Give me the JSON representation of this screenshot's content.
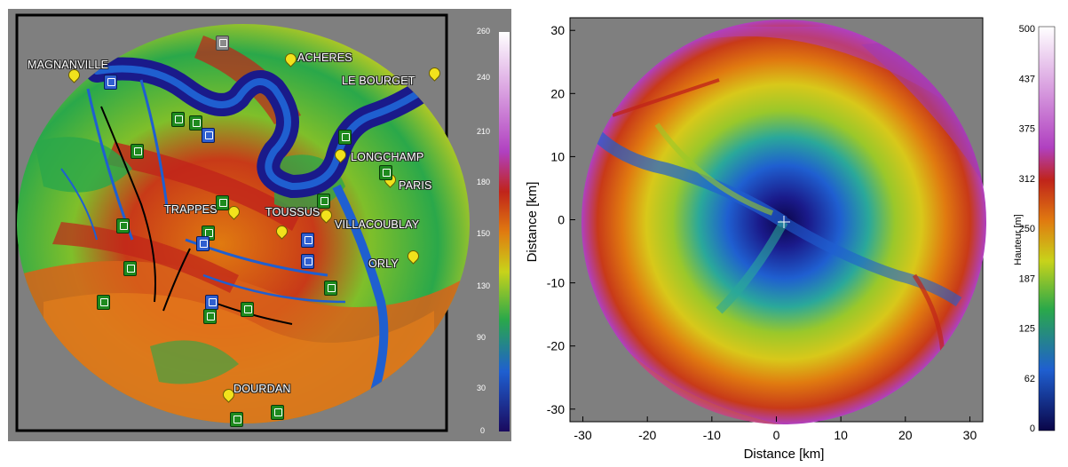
{
  "left_map": {
    "colorbar_ticks": [
      "260",
      "240",
      "210",
      "180",
      "150",
      "130",
      "90",
      "30",
      "0"
    ],
    "places": [
      {
        "id": "magnanville",
        "label": "MAGNANVILLE"
      },
      {
        "id": "acheres",
        "label": "ACHERES"
      },
      {
        "id": "le-bourget",
        "label": "LE BOURGET"
      },
      {
        "id": "longchamp",
        "label": "LONGCHAMP"
      },
      {
        "id": "paris",
        "label": "PARIS"
      },
      {
        "id": "trappes",
        "label": "TRAPPES"
      },
      {
        "id": "toussus",
        "label": "TOUSSUS"
      },
      {
        "id": "villacoublay",
        "label": "VILLACOUBLAY"
      },
      {
        "id": "orly",
        "label": "ORLY"
      },
      {
        "id": "dourdan",
        "label": "DOURDAN"
      }
    ],
    "colors": {
      "low": "#1a0a5e",
      "mid_low": "#1f5fd0",
      "mid": "#2aa84a",
      "mid_high": "#c8d31a",
      "high": "#e07a10",
      "very_high": "#c0241a",
      "peak": "#b040c0"
    }
  },
  "right_plot": {
    "y_ticks": [
      "30",
      "20",
      "10",
      "0",
      "-10",
      "-20",
      "-30"
    ],
    "x_ticks": [
      "-30",
      "-20",
      "-10",
      "0",
      "10",
      "20",
      "30"
    ],
    "xlabel": "Distance [km]",
    "ylabel": "Distance [km]",
    "colorbar_label": "Hauteur [m]",
    "colorbar_ticks": [
      "500",
      "437",
      "375",
      "312",
      "250",
      "187",
      "125",
      "62",
      "0"
    ],
    "range_km": [
      -32,
      32
    ]
  }
}
